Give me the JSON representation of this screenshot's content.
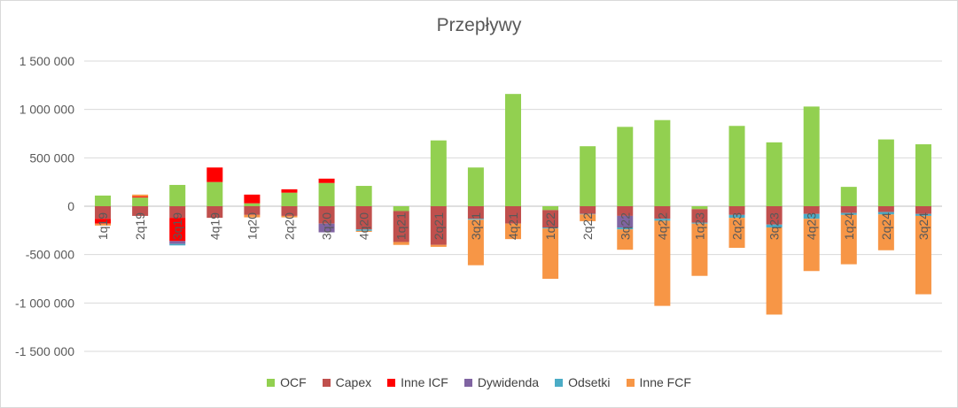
{
  "chart_data": {
    "type": "bar",
    "stacked": true,
    "title": "Przepływy",
    "ylim": [
      -1500000,
      1500000
    ],
    "yticks": [
      1500000,
      1000000,
      500000,
      0,
      -500000,
      -1000000,
      -1500000
    ],
    "ytick_labels": [
      "1 500 000",
      "1 000 000",
      "500 000",
      "0",
      "-500 000",
      "-1 000 000",
      "-1 500 000"
    ],
    "grid": true,
    "legend_position": "bottom",
    "categories": [
      "1q19",
      "2q19",
      "3q19",
      "4q19",
      "1q20",
      "2q20",
      "3q20",
      "4q20",
      "1q21",
      "2q21",
      "3q21",
      "4q21",
      "1q22",
      "2q22",
      "3q22",
      "4q22",
      "1q23",
      "2q23",
      "3q23",
      "4q23",
      "1q24",
      "2q24",
      "3q24"
    ],
    "series": [
      {
        "name": "OCF",
        "color": "#92D050",
        "values": [
          110000,
          90000,
          220000,
          250000,
          30000,
          140000,
          240000,
          210000,
          -50000,
          680000,
          400000,
          1160000,
          -40000,
          620000,
          820000,
          890000,
          -30000,
          830000,
          660000,
          1030000,
          200000,
          690000,
          640000
        ]
      },
      {
        "name": "Capex",
        "color": "#C0504D",
        "values": [
          -130000,
          -100000,
          -120000,
          -120000,
          -90000,
          -100000,
          -180000,
          -240000,
          -320000,
          -400000,
          -130000,
          -180000,
          -180000,
          -80000,
          -100000,
          -130000,
          -140000,
          -90000,
          -190000,
          -80000,
          -70000,
          -60000,
          -80000
        ]
      },
      {
        "name": "Inne ICF",
        "color": "#FF0000",
        "values": [
          -50000,
          10000,
          -240000,
          150000,
          90000,
          35000,
          45000,
          0,
          0,
          0,
          0,
          0,
          0,
          0,
          0,
          0,
          0,
          0,
          0,
          0,
          0,
          0,
          0
        ]
      },
      {
        "name": "Dywidenda",
        "color": "#8064A2",
        "values": [
          0,
          0,
          -30000,
          0,
          0,
          0,
          -90000,
          0,
          0,
          0,
          0,
          0,
          0,
          0,
          -120000,
          0,
          0,
          0,
          0,
          0,
          0,
          0,
          0
        ]
      },
      {
        "name": "Odsetki",
        "color": "#4BACC6",
        "values": [
          0,
          0,
          -15000,
          0,
          0,
          0,
          0,
          -15000,
          0,
          0,
          -10000,
          0,
          -10000,
          -5000,
          -20000,
          -20000,
          -10000,
          -30000,
          -30000,
          -50000,
          -20000,
          -25000,
          -20000
        ]
      },
      {
        "name": "Inne FCF",
        "color": "#F79646",
        "values": [
          -20000,
          20000,
          0,
          0,
          -25000,
          -15000,
          0,
          -10000,
          -30000,
          -20000,
          -470000,
          -160000,
          -520000,
          -70000,
          -210000,
          -880000,
          -540000,
          -310000,
          -900000,
          -540000,
          -510000,
          -370000,
          -810000
        ]
      }
    ]
  }
}
